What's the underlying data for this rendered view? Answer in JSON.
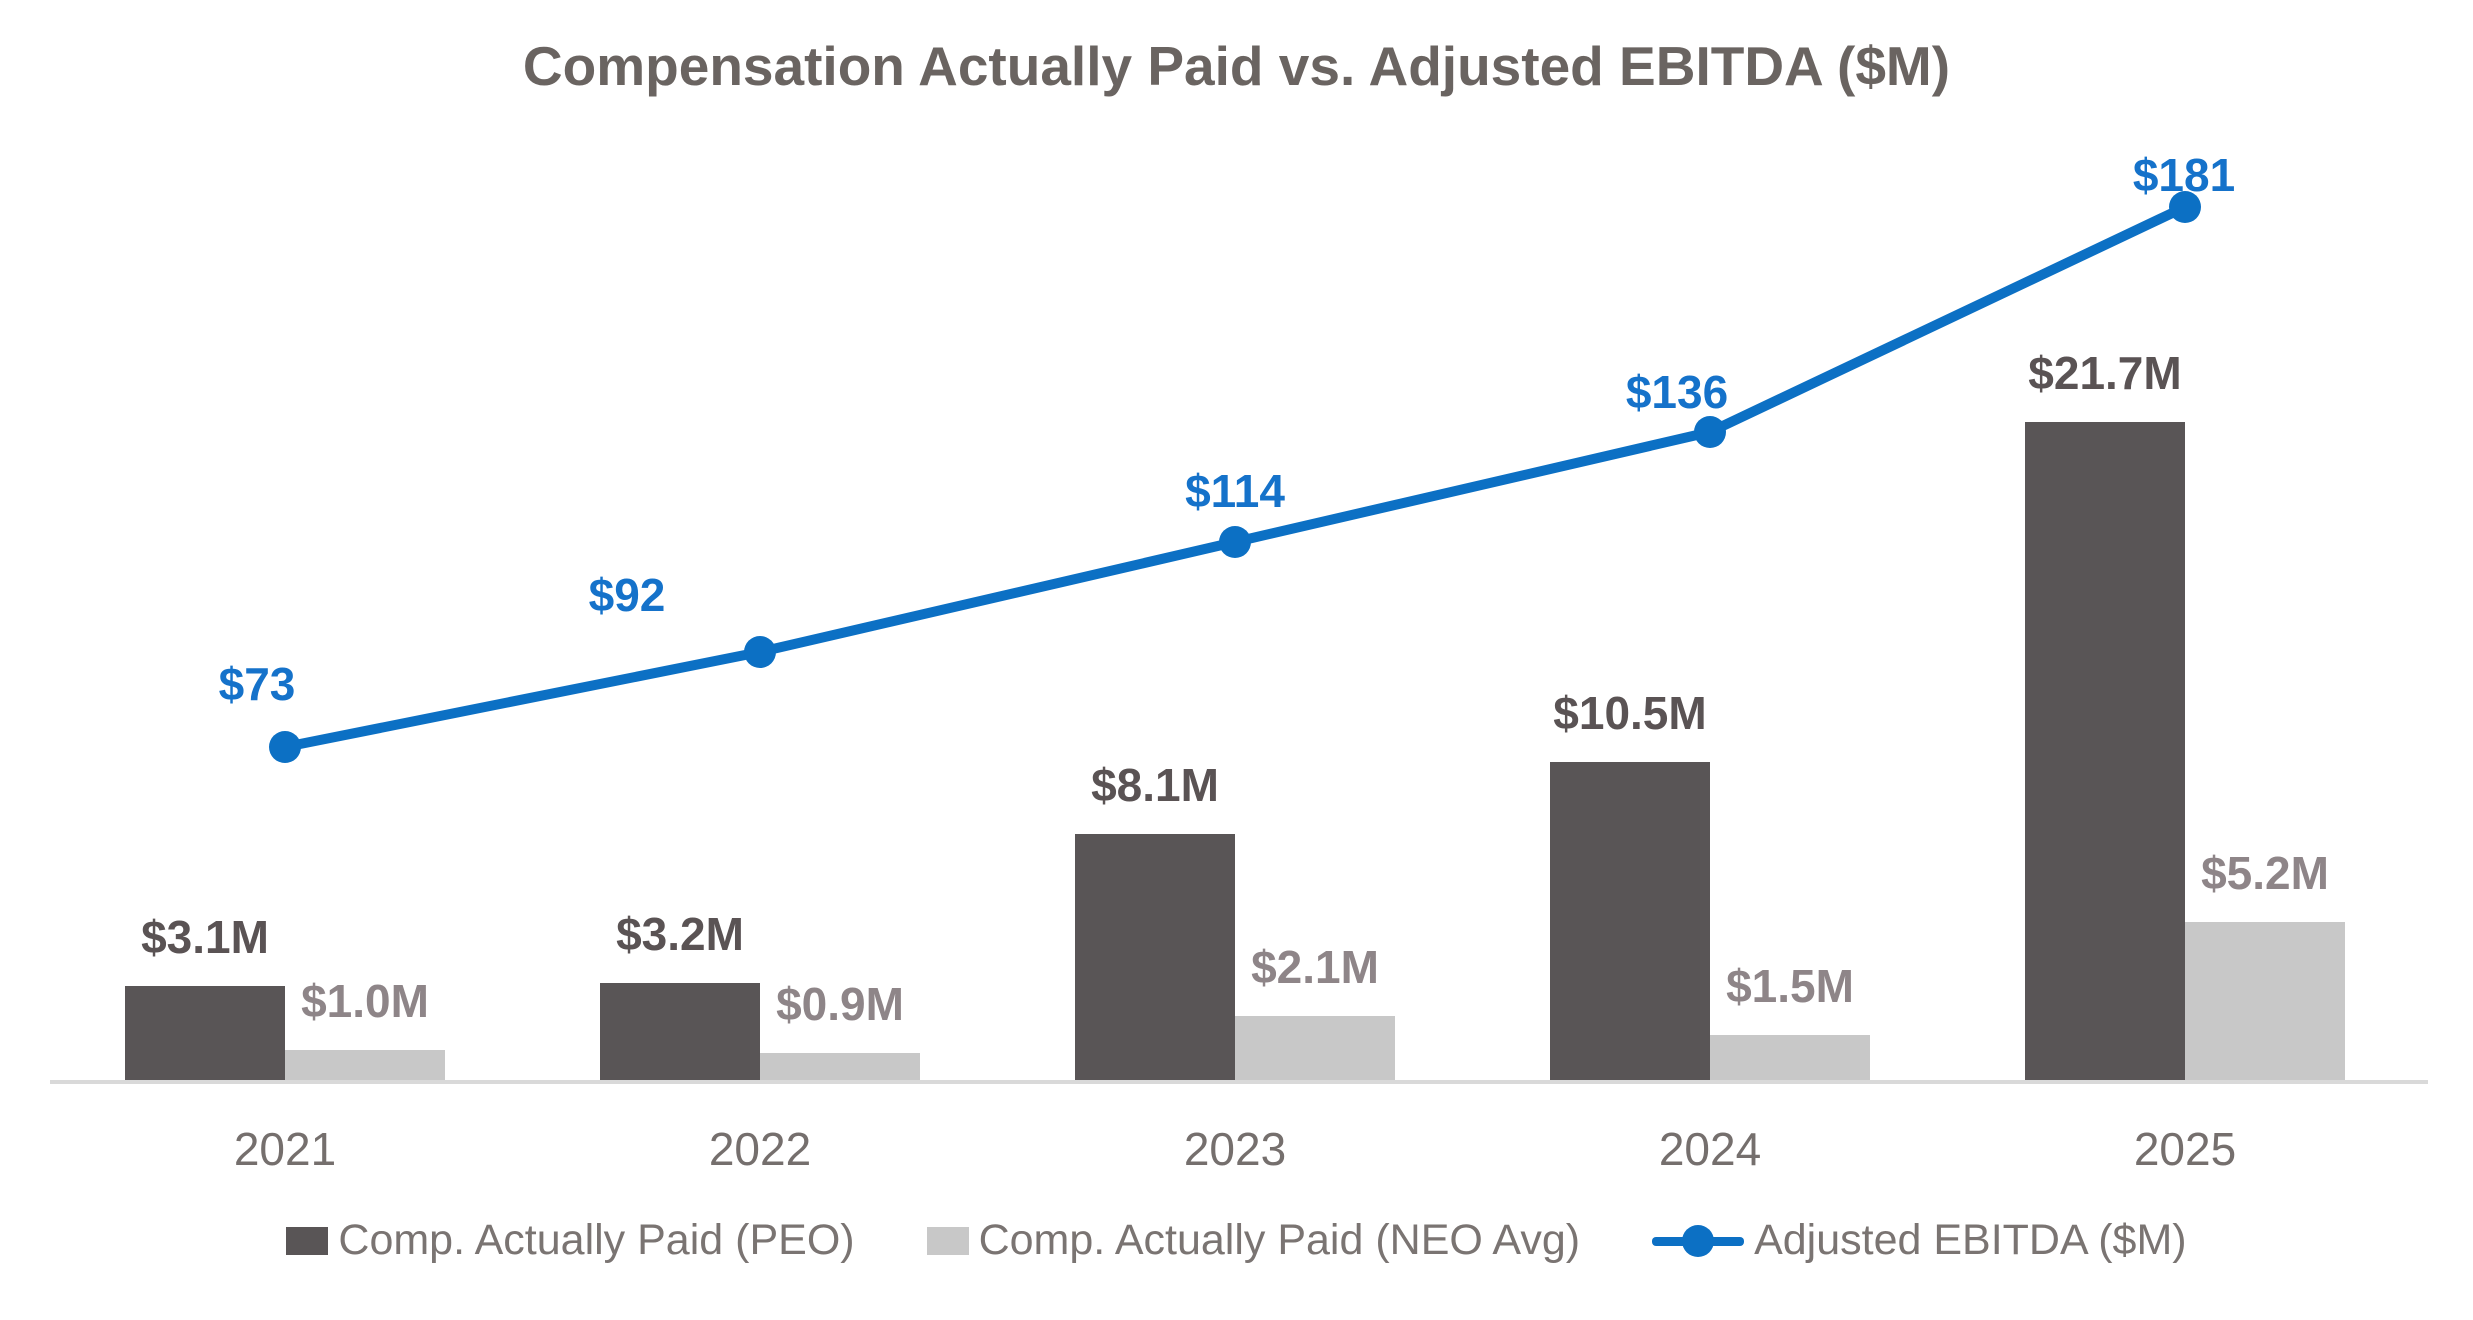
{
  "chart_data": {
    "type": "combo-bar-line",
    "title": "Compensation Actually Paid vs. Adjusted EBITDA ($M)",
    "categories": [
      "2021",
      "2022",
      "2023",
      "2024",
      "2025"
    ],
    "series": [
      {
        "name": "Comp. Actually Paid (PEO)",
        "type": "bar",
        "values": [
          3.1,
          3.2,
          8.1,
          10.5,
          21.7
        ],
        "labels": [
          "$3.1M",
          "$3.2M",
          "$8.1M",
          "$10.5M",
          "$21.7M"
        ],
        "color": "#595556",
        "label_color": "#5A5354"
      },
      {
        "name": "Comp. Actually Paid (NEO Avg)",
        "type": "bar",
        "values": [
          1.0,
          0.9,
          2.1,
          1.5,
          5.2
        ],
        "labels": [
          "$1.0M",
          "$0.9M",
          "$2.1M",
          "$1.5M",
          "$5.2M"
        ],
        "color": "#C8C8C8",
        "label_color": "#8E8588"
      },
      {
        "name": "Adjusted EBITDA ($M)",
        "type": "line",
        "values": [
          73,
          92,
          114,
          136,
          181
        ],
        "labels": [
          "$73",
          "$92",
          "$114",
          "$136",
          "$181"
        ],
        "color": "#0C70C4",
        "label_color": "#1572CA"
      }
    ],
    "axis": {
      "x_labels": [
        "2021",
        "2022",
        "2023",
        "2024",
        "2025"
      ],
      "x_label_color": "#756F6D",
      "axis_line_color": "#D9D9D9",
      "y_axis_visible": false,
      "grid": false
    },
    "legend_position": "bottom",
    "title_color": "#6A6461",
    "background": "#FFFFFF"
  }
}
